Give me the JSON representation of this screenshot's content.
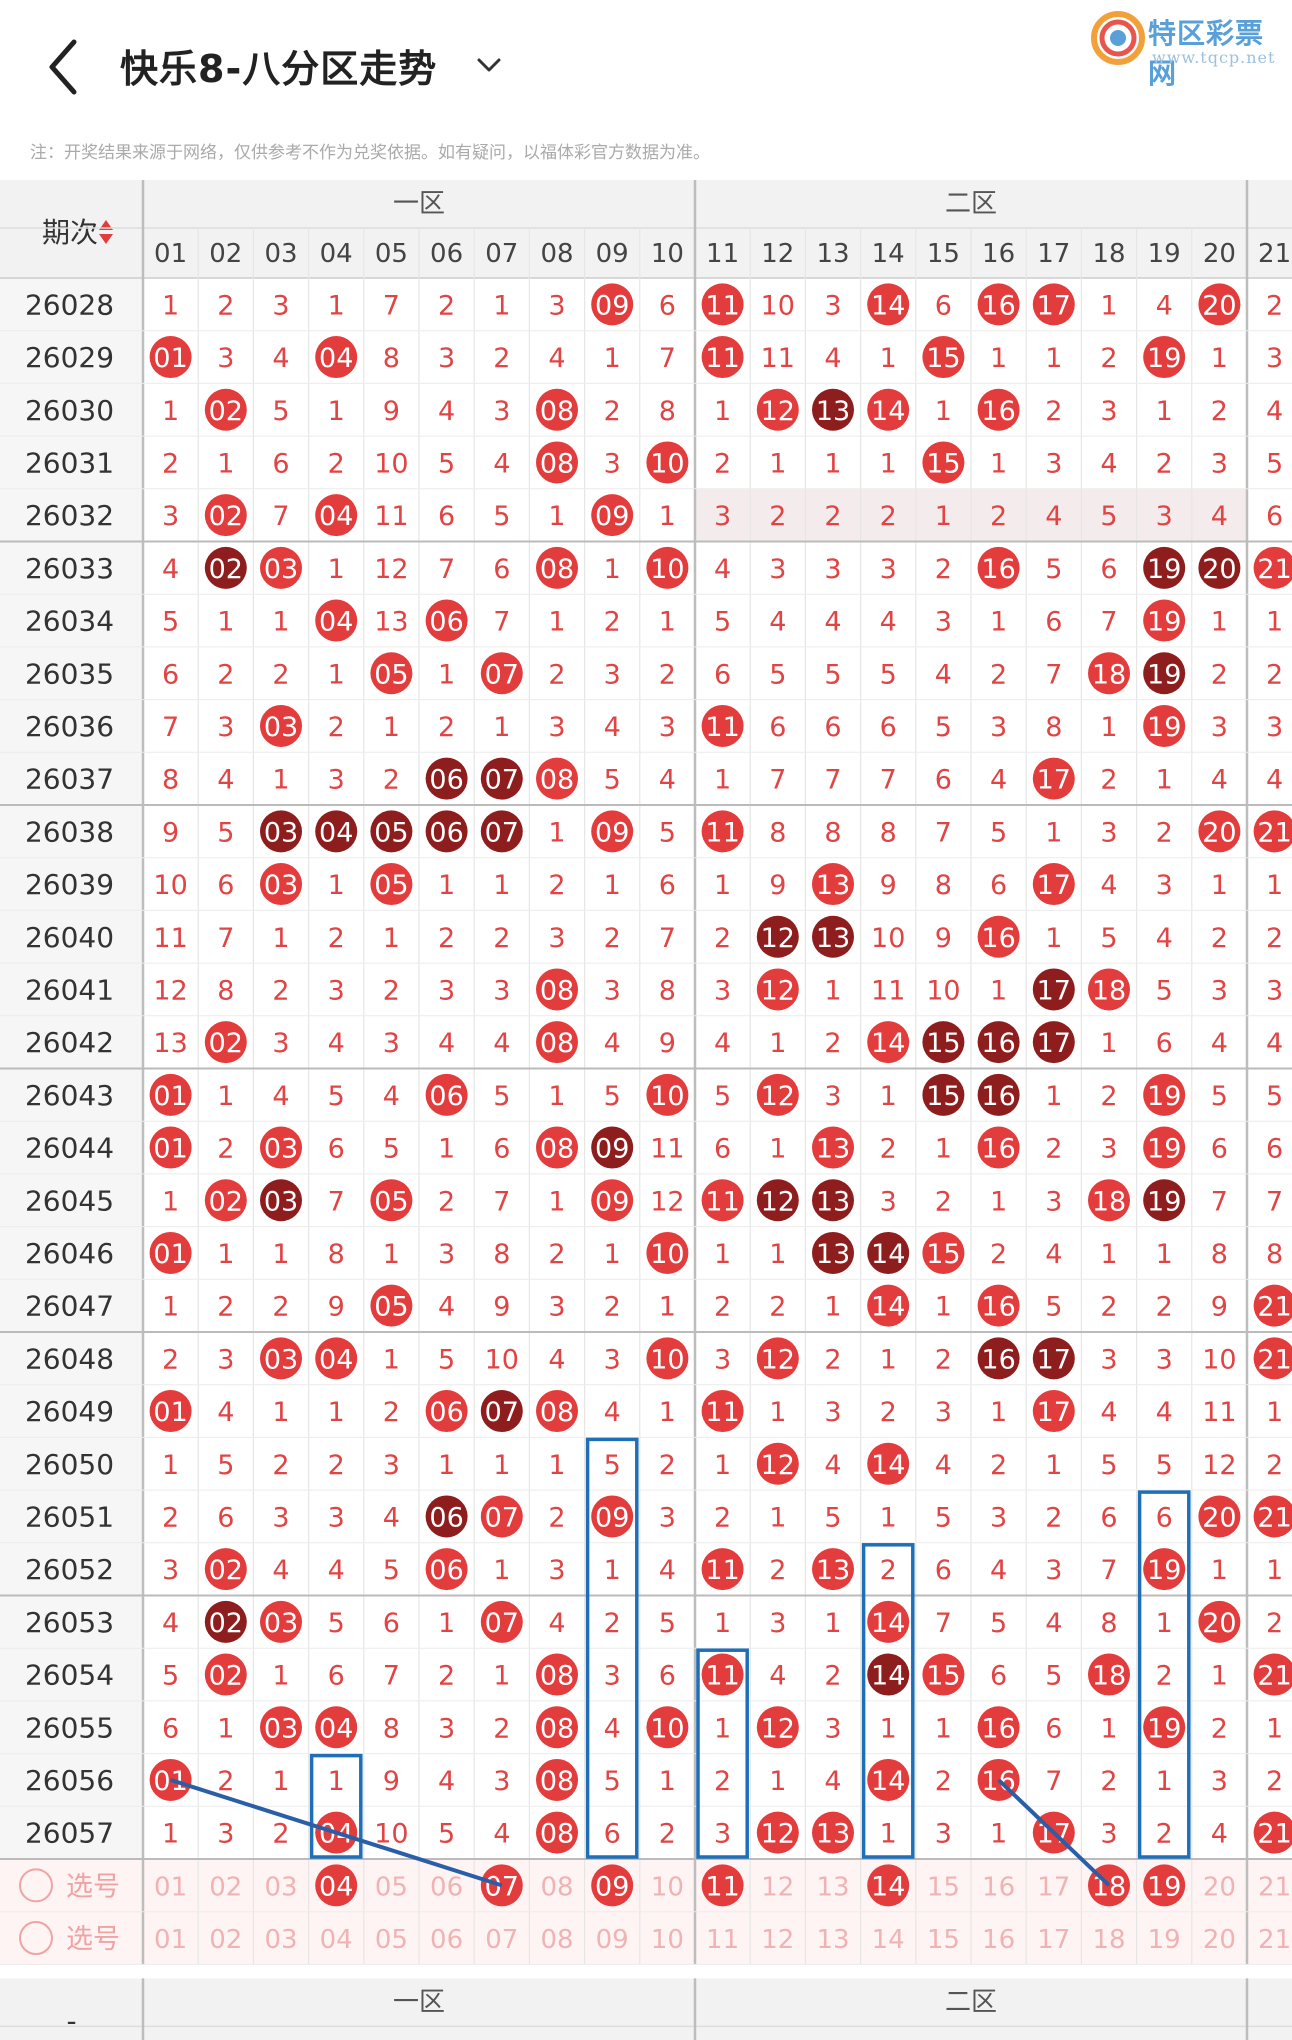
{
  "header": {
    "title": "快乐8-八分区走势",
    "back_icon": "back-chevron-icon",
    "dropdown_icon": "chevron-down-icon"
  },
  "logo": {
    "name": "特区彩票网",
    "url": "www.tqcp.net"
  },
  "notice": "注：开奖结果来源于网络，仅供参考不作为兑奖依据。如有疑问，以福体彩官方数据为准。",
  "table": {
    "period_header": "期次",
    "sort_icon": "sort-updown-icon",
    "zones": [
      "一区",
      "二区"
    ],
    "columns": [
      "01",
      "02",
      "03",
      "04",
      "05",
      "06",
      "07",
      "08",
      "09",
      "10",
      "11",
      "12",
      "13",
      "14",
      "15",
      "16",
      "17",
      "18",
      "19",
      "20",
      "21"
    ],
    "rows": [
      {
        "period": "26028",
        "cells": [
          "1",
          "2",
          "3",
          "1",
          "7",
          "2",
          "1",
          "3",
          "09",
          "6",
          "11",
          "10",
          "3",
          "14",
          "6",
          "16",
          "17",
          "1",
          "4",
          "20",
          "2"
        ]
      },
      {
        "period": "26029",
        "cells": [
          "01",
          "3",
          "4",
          "04",
          "8",
          "3",
          "2",
          "4",
          "1",
          "7",
          "11",
          "11",
          "4",
          "1",
          "15",
          "1",
          "1",
          "2",
          "19",
          "1",
          "3"
        ]
      },
      {
        "period": "26030",
        "cells": [
          "1",
          "02",
          "5",
          "1",
          "9",
          "4",
          "3",
          "08",
          "2",
          "8",
          "1",
          "12",
          "13",
          "14",
          "1",
          "16",
          "2",
          "3",
          "1",
          "2",
          "4"
        ]
      },
      {
        "period": "26031",
        "cells": [
          "2",
          "1",
          "6",
          "2",
          "10",
          "5",
          "4",
          "08",
          "3",
          "10",
          "2",
          "1",
          "1",
          "1",
          "15",
          "1",
          "3",
          "4",
          "2",
          "3",
          "5"
        ]
      },
      {
        "period": "26032",
        "cells": [
          "3",
          "02",
          "7",
          "04",
          "11",
          "6",
          "5",
          "1",
          "09",
          "1",
          "3",
          "2",
          "2",
          "2",
          "1",
          "2",
          "4",
          "5",
          "3",
          "4",
          "6"
        ]
      },
      {
        "period": "26033",
        "cells": [
          "4",
          "02",
          "03",
          "1",
          "12",
          "7",
          "6",
          "08",
          "1",
          "10",
          "4",
          "3",
          "3",
          "3",
          "2",
          "16",
          "5",
          "6",
          "19",
          "20",
          "21"
        ]
      },
      {
        "period": "26034",
        "cells": [
          "5",
          "1",
          "1",
          "04",
          "13",
          "06",
          "7",
          "1",
          "2",
          "1",
          "5",
          "4",
          "4",
          "4",
          "3",
          "1",
          "6",
          "7",
          "19",
          "1",
          "1"
        ]
      },
      {
        "period": "26035",
        "cells": [
          "6",
          "2",
          "2",
          "1",
          "05",
          "1",
          "07",
          "2",
          "3",
          "2",
          "6",
          "5",
          "5",
          "5",
          "4",
          "2",
          "7",
          "18",
          "19",
          "2",
          "2"
        ]
      },
      {
        "period": "26036",
        "cells": [
          "7",
          "3",
          "03",
          "2",
          "1",
          "2",
          "1",
          "3",
          "4",
          "3",
          "11",
          "6",
          "6",
          "6",
          "5",
          "3",
          "8",
          "1",
          "19",
          "3",
          "3"
        ]
      },
      {
        "period": "26037",
        "cells": [
          "8",
          "4",
          "1",
          "3",
          "2",
          "06",
          "07",
          "08",
          "5",
          "4",
          "1",
          "7",
          "7",
          "7",
          "6",
          "4",
          "17",
          "2",
          "1",
          "4",
          "4"
        ]
      },
      {
        "period": "26038",
        "cells": [
          "9",
          "5",
          "03",
          "04",
          "05",
          "06",
          "07",
          "1",
          "09",
          "5",
          "11",
          "8",
          "8",
          "8",
          "7",
          "5",
          "1",
          "3",
          "2",
          "20",
          "21"
        ]
      },
      {
        "period": "26039",
        "cells": [
          "10",
          "6",
          "03",
          "1",
          "05",
          "1",
          "1",
          "2",
          "1",
          "6",
          "1",
          "9",
          "13",
          "9",
          "8",
          "6",
          "17",
          "4",
          "3",
          "1",
          "1"
        ]
      },
      {
        "period": "26040",
        "cells": [
          "11",
          "7",
          "1",
          "2",
          "1",
          "2",
          "2",
          "3",
          "2",
          "7",
          "2",
          "12",
          "13",
          "10",
          "9",
          "16",
          "1",
          "5",
          "4",
          "2",
          "2"
        ]
      },
      {
        "period": "26041",
        "cells": [
          "12",
          "8",
          "2",
          "3",
          "2",
          "3",
          "3",
          "08",
          "3",
          "8",
          "3",
          "12",
          "1",
          "11",
          "10",
          "1",
          "17",
          "18",
          "5",
          "3",
          "3"
        ]
      },
      {
        "period": "26042",
        "cells": [
          "13",
          "02",
          "3",
          "4",
          "3",
          "4",
          "4",
          "08",
          "4",
          "9",
          "4",
          "1",
          "2",
          "14",
          "15",
          "16",
          "17",
          "1",
          "6",
          "4",
          "4"
        ]
      },
      {
        "period": "26043",
        "cells": [
          "01",
          "1",
          "4",
          "5",
          "4",
          "06",
          "5",
          "1",
          "5",
          "10",
          "5",
          "12",
          "3",
          "1",
          "15",
          "16",
          "1",
          "2",
          "19",
          "5",
          "5"
        ]
      },
      {
        "period": "26044",
        "cells": [
          "01",
          "2",
          "03",
          "6",
          "5",
          "1",
          "6",
          "08",
          "09",
          "11",
          "6",
          "1",
          "13",
          "2",
          "1",
          "16",
          "2",
          "3",
          "19",
          "6",
          "6"
        ]
      },
      {
        "period": "26045",
        "cells": [
          "1",
          "02",
          "03",
          "7",
          "05",
          "2",
          "7",
          "1",
          "09",
          "12",
          "11",
          "12",
          "13",
          "3",
          "2",
          "1",
          "3",
          "18",
          "19",
          "7",
          "7"
        ]
      },
      {
        "period": "26046",
        "cells": [
          "01",
          "1",
          "1",
          "8",
          "1",
          "3",
          "8",
          "2",
          "1",
          "10",
          "1",
          "1",
          "13",
          "14",
          "15",
          "2",
          "4",
          "1",
          "1",
          "8",
          "8"
        ]
      },
      {
        "period": "26047",
        "cells": [
          "1",
          "2",
          "2",
          "9",
          "05",
          "4",
          "9",
          "3",
          "2",
          "1",
          "2",
          "2",
          "1",
          "14",
          "1",
          "16",
          "5",
          "2",
          "2",
          "9",
          "21"
        ]
      },
      {
        "period": "26048",
        "cells": [
          "2",
          "3",
          "03",
          "04",
          "1",
          "5",
          "10",
          "4",
          "3",
          "10",
          "3",
          "12",
          "2",
          "1",
          "2",
          "16",
          "17",
          "3",
          "3",
          "10",
          "21"
        ]
      },
      {
        "period": "26049",
        "cells": [
          "01",
          "4",
          "1",
          "1",
          "2",
          "06",
          "07",
          "08",
          "4",
          "1",
          "11",
          "1",
          "3",
          "2",
          "3",
          "1",
          "17",
          "4",
          "4",
          "11",
          "1"
        ]
      },
      {
        "period": "26050",
        "cells": [
          "1",
          "5",
          "2",
          "2",
          "3",
          "1",
          "1",
          "1",
          "5",
          "2",
          "1",
          "12",
          "4",
          "14",
          "4",
          "2",
          "1",
          "5",
          "5",
          "12",
          "2"
        ]
      },
      {
        "period": "26051",
        "cells": [
          "2",
          "6",
          "3",
          "3",
          "4",
          "06",
          "07",
          "2",
          "09",
          "3",
          "2",
          "1",
          "5",
          "1",
          "5",
          "3",
          "2",
          "6",
          "6",
          "20",
          "21"
        ]
      },
      {
        "period": "26052",
        "cells": [
          "3",
          "02",
          "4",
          "4",
          "5",
          "06",
          "1",
          "3",
          "1",
          "4",
          "11",
          "2",
          "13",
          "2",
          "6",
          "4",
          "3",
          "7",
          "19",
          "1",
          "1"
        ]
      },
      {
        "period": "26053",
        "cells": [
          "4",
          "02",
          "03",
          "5",
          "6",
          "1",
          "07",
          "4",
          "2",
          "5",
          "1",
          "3",
          "1",
          "14",
          "7",
          "5",
          "4",
          "8",
          "1",
          "20",
          "2"
        ]
      },
      {
        "period": "26054",
        "cells": [
          "5",
          "02",
          "1",
          "6",
          "7",
          "2",
          "1",
          "08",
          "3",
          "6",
          "11",
          "4",
          "2",
          "14",
          "15",
          "6",
          "5",
          "18",
          "2",
          "1",
          "21"
        ]
      },
      {
        "period": "26055",
        "cells": [
          "6",
          "1",
          "03",
          "04",
          "8",
          "3",
          "2",
          "08",
          "4",
          "10",
          "1",
          "12",
          "3",
          "1",
          "1",
          "16",
          "6",
          "1",
          "19",
          "2",
          "1"
        ]
      },
      {
        "period": "26056",
        "cells": [
          "01",
          "2",
          "1",
          "1",
          "9",
          "4",
          "3",
          "08",
          "5",
          "1",
          "2",
          "1",
          "4",
          "14",
          "2",
          "16",
          "7",
          "2",
          "1",
          "3",
          "2"
        ]
      },
      {
        "period": "26057",
        "cells": [
          "1",
          "3",
          "2",
          "04",
          "10",
          "5",
          "4",
          "08",
          "6",
          "2",
          "3",
          "12",
          "13",
          "1",
          "3",
          "1",
          "17",
          "3",
          "2",
          "4",
          "21"
        ]
      }
    ],
    "select_rows": [
      {
        "label": "选号",
        "picked": [
          "04",
          "07",
          "09",
          "11",
          "14",
          "18",
          "19"
        ]
      },
      {
        "label": "选号",
        "picked": []
      }
    ],
    "footer_zones": [
      "一区",
      "二区"
    ],
    "footer_period_header": "-"
  },
  "colors": {
    "ball_red": "#e23c3c",
    "ball_dark": "#8e1d1d",
    "miss_text": "#e14444",
    "highlight_box": "#1f6fb8",
    "line": "#2a5fa8"
  }
}
